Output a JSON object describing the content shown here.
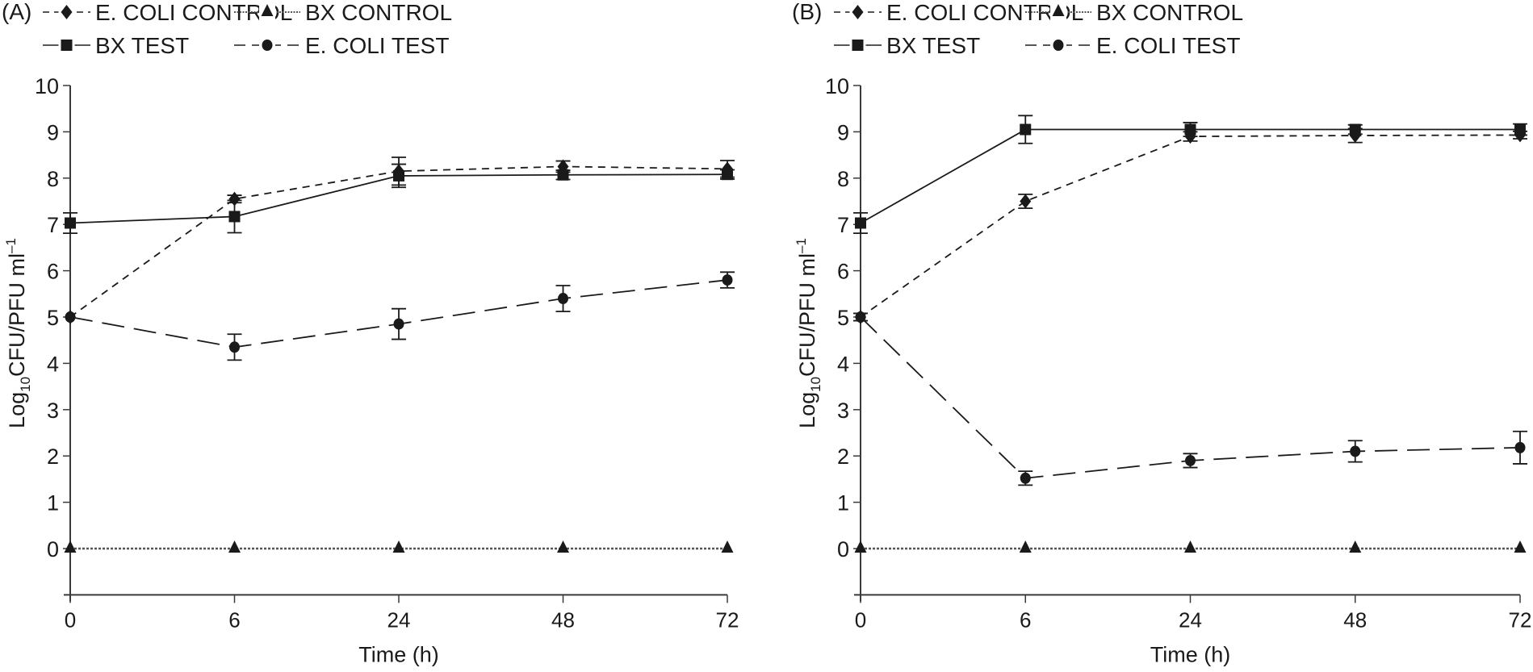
{
  "chart_data": [
    {
      "type": "line",
      "panel_label": "(A)",
      "xlabel": "Time (h)",
      "ylabel": "Log10CFU/PFU ml-1",
      "ylabel_parts": {
        "prefix": "Log",
        "sub": "10",
        "main": "CFU/PFU ml",
        "sup": "–1"
      },
      "x": [
        "0",
        "6",
        "24",
        "48",
        "72"
      ],
      "x_scale": "categorical-evenly-spaced",
      "ylim": [
        -1,
        10
      ],
      "yticks": [
        "0",
        "1",
        "2",
        "3",
        "4",
        "5",
        "6",
        "7",
        "8",
        "9",
        "10"
      ],
      "grid": false,
      "legend_placement": "top",
      "series": [
        {
          "name": "E. COLI CONTROL",
          "marker": "diamond",
          "line": "dashed",
          "values": [
            5.0,
            7.55,
            8.15,
            8.25,
            8.2
          ],
          "errors": [
            0.05,
            0.08,
            0.3,
            0.12,
            0.18
          ]
        },
        {
          "name": "BX CONTROL",
          "marker": "triangle",
          "line": "dotted",
          "values": [
            0,
            0,
            0,
            0,
            0
          ],
          "errors": [
            0,
            0,
            0,
            0,
            0
          ]
        },
        {
          "name": "BX TEST",
          "marker": "square",
          "line": "solid",
          "values": [
            7.03,
            7.17,
            8.05,
            8.07,
            8.08
          ],
          "errors": [
            0.22,
            0.35,
            0.25,
            0.1,
            0.1
          ]
        },
        {
          "name": "E. COLI TEST",
          "marker": "circle",
          "line": "long-dash",
          "values": [
            5.0,
            4.35,
            4.85,
            5.4,
            5.8
          ],
          "errors": [
            0.05,
            0.28,
            0.33,
            0.28,
            0.17
          ]
        }
      ]
    },
    {
      "type": "line",
      "panel_label": "(B)",
      "xlabel": "Time (h)",
      "ylabel": "Log10CFU/PFU ml-1",
      "ylabel_parts": {
        "prefix": "Log",
        "sub": "10",
        "main": "CFU/PFU ml",
        "sup": "–1"
      },
      "x": [
        "0",
        "6",
        "24",
        "48",
        "72"
      ],
      "x_scale": "categorical-evenly-spaced",
      "ylim": [
        -1,
        10
      ],
      "yticks": [
        "0",
        "1",
        "2",
        "3",
        "4",
        "5",
        "6",
        "7",
        "8",
        "9",
        "10"
      ],
      "grid": false,
      "legend_placement": "top",
      "series": [
        {
          "name": "E. COLI CONTROL",
          "marker": "diamond",
          "line": "dashed",
          "values": [
            5.0,
            7.5,
            8.9,
            8.92,
            8.93
          ],
          "errors": [
            0.08,
            0.15,
            0.1,
            0.15,
            0.08
          ]
        },
        {
          "name": "BX CONTROL",
          "marker": "triangle",
          "line": "dotted",
          "values": [
            0,
            0,
            0,
            0,
            0
          ],
          "errors": [
            0,
            0,
            0,
            0,
            0
          ]
        },
        {
          "name": "BX TEST",
          "marker": "square",
          "line": "solid",
          "values": [
            7.03,
            9.05,
            9.05,
            9.05,
            9.05
          ],
          "errors": [
            0.22,
            0.3,
            0.15,
            0.1,
            0.12
          ]
        },
        {
          "name": "E. COLI TEST",
          "marker": "circle",
          "line": "long-dash",
          "values": [
            5.0,
            1.52,
            1.9,
            2.1,
            2.18
          ],
          "errors": [
            0.08,
            0.15,
            0.15,
            0.23,
            0.35
          ]
        }
      ]
    }
  ],
  "colors": {
    "ink": "#1a1a1a",
    "axis": "#3a3a3a",
    "legend_line": "#555555"
  }
}
